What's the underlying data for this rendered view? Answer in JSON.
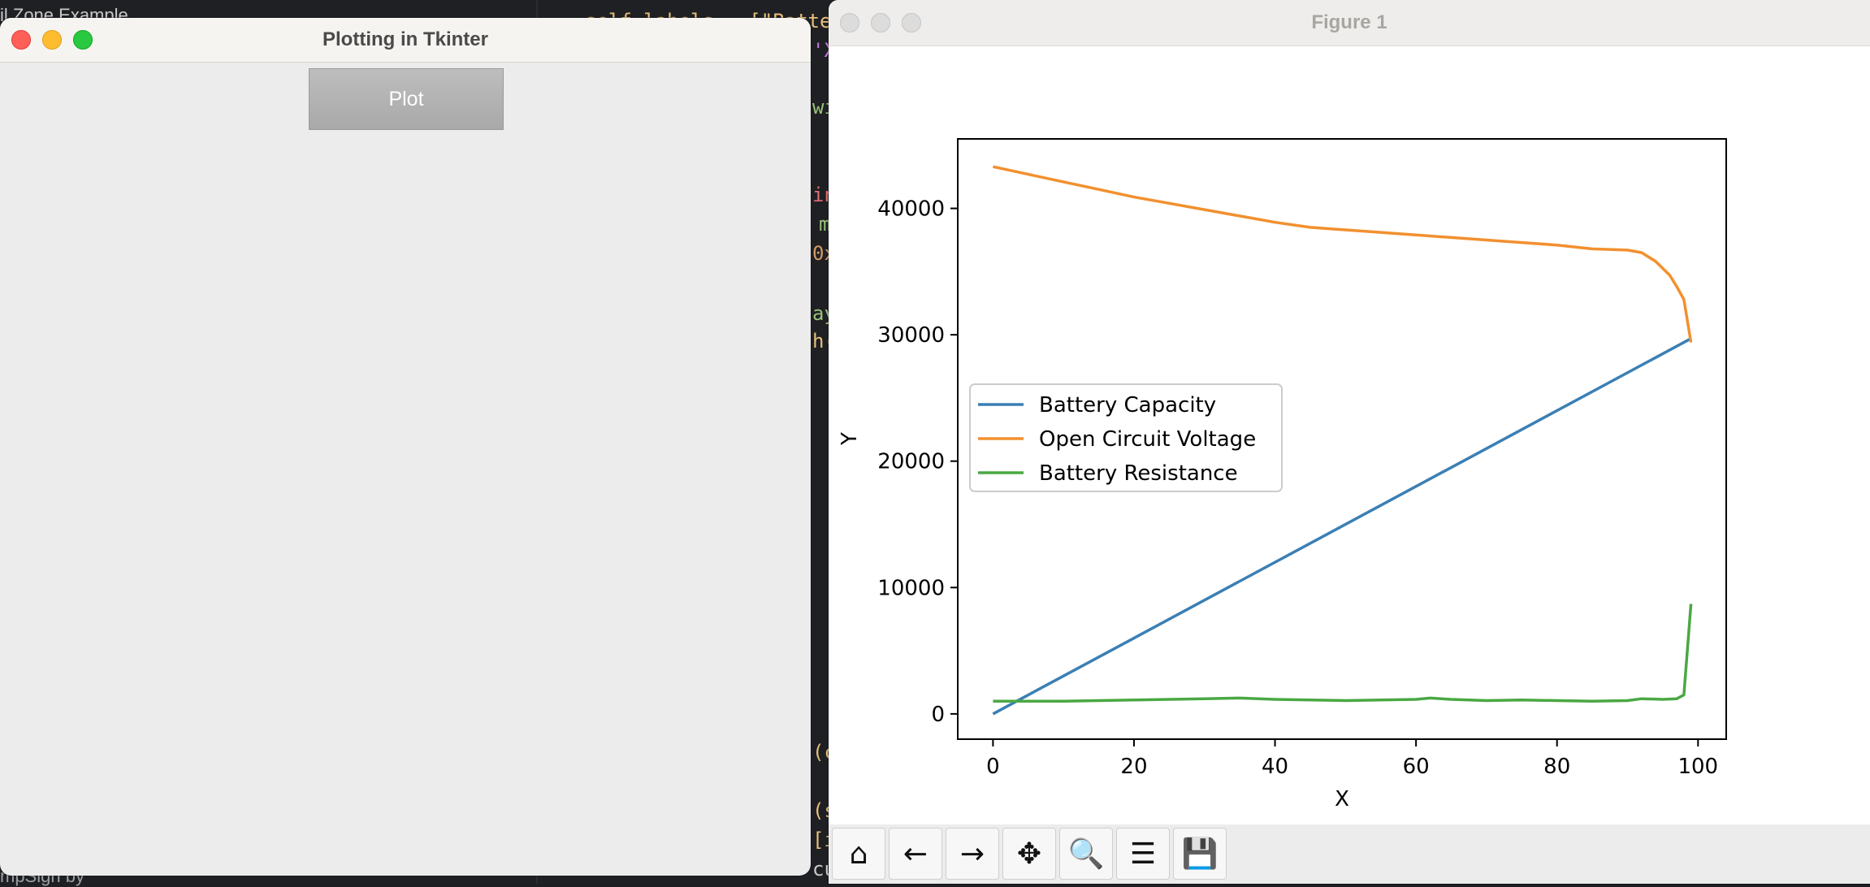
{
  "background": {
    "top_text": "il Zone Example",
    "bottom_text": "mpSign by",
    "code_fragments": [
      "self.labels = [\"Batte",
      "'X",
      "wi",
      "in",
      "m",
      "0x",
      "ay",
      "h(",
      "(c",
      "(s",
      "[i",
      "cu"
    ]
  },
  "tk_window": {
    "title": "Plotting in Tkinter",
    "plot_button_label": "Plot"
  },
  "figure_window": {
    "title": "Figure 1",
    "toolbar": [
      {
        "name": "home-icon",
        "glyph": "⌂"
      },
      {
        "name": "back-arrow-icon",
        "glyph": "←"
      },
      {
        "name": "forward-arrow-icon",
        "glyph": "→"
      },
      {
        "name": "pan-icon",
        "glyph": "✥"
      },
      {
        "name": "zoom-icon",
        "glyph": "🔍"
      },
      {
        "name": "configure-subplots-icon",
        "glyph": "☰"
      },
      {
        "name": "save-icon",
        "glyph": "💾"
      }
    ]
  },
  "chart_data": {
    "type": "line",
    "title": "",
    "xlabel": "X",
    "ylabel": "Y",
    "xlim": [
      -5,
      104
    ],
    "ylim": [
      -2000,
      45500
    ],
    "xticks": [
      0,
      20,
      40,
      60,
      80,
      100
    ],
    "yticks": [
      0,
      10000,
      20000,
      30000,
      40000
    ],
    "grid": false,
    "legend_position": "center-left",
    "series": [
      {
        "name": "Battery Capacity",
        "color": "#3b7fb4",
        "x": [
          0,
          99
        ],
        "y": [
          0,
          29700
        ]
      },
      {
        "name": "Open Circuit Voltage",
        "color": "#f2902f",
        "x": [
          0,
          5,
          10,
          15,
          20,
          25,
          30,
          35,
          40,
          45,
          50,
          55,
          60,
          65,
          70,
          75,
          80,
          85,
          90,
          92,
          94,
          96,
          97,
          98,
          99
        ],
        "y": [
          43300,
          42700,
          42100,
          41500,
          40900,
          40400,
          39900,
          39400,
          38900,
          38500,
          38300,
          38100,
          37900,
          37700,
          37500,
          37300,
          37100,
          36800,
          36700,
          36500,
          35800,
          34700,
          33800,
          32800,
          29400
        ]
      },
      {
        "name": "Battery Resistance",
        "color": "#4aa843",
        "x": [
          0,
          5,
          10,
          15,
          20,
          25,
          30,
          35,
          40,
          45,
          50,
          55,
          60,
          62,
          65,
          70,
          75,
          80,
          85,
          90,
          92,
          95,
          97,
          98,
          99
        ],
        "y": [
          1000,
          1000,
          1000,
          1050,
          1100,
          1150,
          1200,
          1250,
          1150,
          1100,
          1050,
          1100,
          1150,
          1250,
          1150,
          1050,
          1100,
          1050,
          1000,
          1050,
          1200,
          1150,
          1200,
          1500,
          8700
        ]
      }
    ]
  }
}
